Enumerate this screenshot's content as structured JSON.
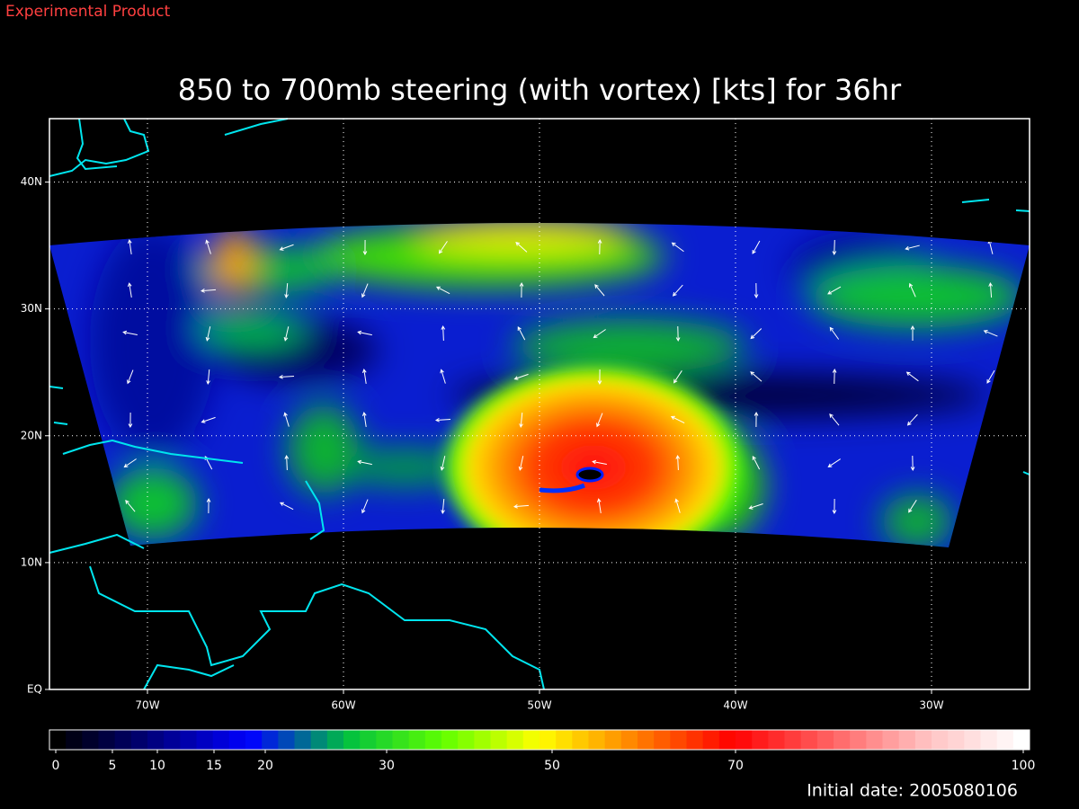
{
  "header": {
    "note": "Experimental Product",
    "title": "850 to 700mb steering (with vortex) [kts] for 36hr"
  },
  "map": {
    "xlim": [
      -75,
      -25
    ],
    "ylim": [
      0,
      45
    ],
    "xticks": [
      {
        "value": -70,
        "label": "70W"
      },
      {
        "value": -60,
        "label": "60W"
      },
      {
        "value": -50,
        "label": "50W"
      },
      {
        "value": -40,
        "label": "40W"
      },
      {
        "value": -30,
        "label": "30W"
      }
    ],
    "yticks": [
      {
        "value": 0,
        "label": "EQ"
      },
      {
        "value": 10,
        "label": "10N"
      },
      {
        "value": 20,
        "label": "20N"
      },
      {
        "value": 30,
        "label": "30N"
      },
      {
        "value": 40,
        "label": "40N"
      }
    ],
    "grid": true
  },
  "colorbar": {
    "ticks": [
      0,
      5,
      10,
      15,
      20,
      30,
      50,
      70,
      100
    ]
  },
  "footer": {
    "date": "Initial date: 2005080106"
  }
}
